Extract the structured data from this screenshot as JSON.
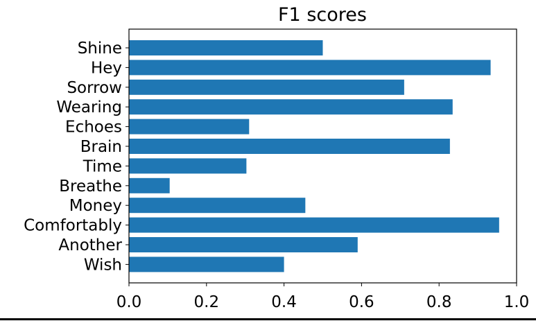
{
  "chart_data": {
    "type": "bar",
    "orientation": "horizontal",
    "title": "F1 scores",
    "xlabel": "",
    "ylabel": "",
    "categories": [
      "Shine",
      "Hey",
      "Sorrow",
      "Wearing",
      "Echoes",
      "Brain",
      "Time",
      "Breathe",
      "Money",
      "Comfortably",
      "Another",
      "Wish"
    ],
    "values": [
      0.5,
      0.933,
      0.71,
      0.835,
      0.31,
      0.828,
      0.303,
      0.105,
      0.455,
      0.955,
      0.59,
      0.4
    ],
    "xlim": [
      0.0,
      1.0
    ],
    "xticks": [
      "0.0",
      "0.2",
      "0.4",
      "0.6",
      "0.8",
      "1.0"
    ],
    "grid": false,
    "bar_color": "#1f77b4"
  }
}
